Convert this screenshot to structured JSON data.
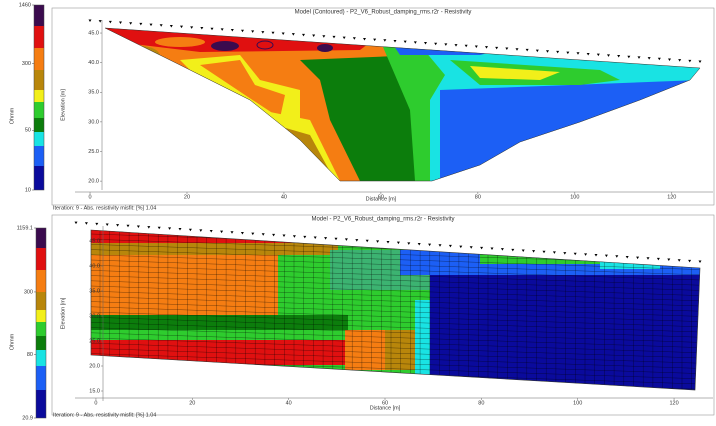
{
  "chart_data": [
    {
      "type": "section",
      "title": "Model (Contoured) - P2_V6_Robust_damping_rms.r2r - Resistivity",
      "x_label": "Distance [m]",
      "y_label": "Elevation [m]",
      "xlim": [
        -3.1,
        128.5
      ],
      "ylim": [
        18.5,
        47.2
      ],
      "xticks": [
        0,
        20,
        40,
        60,
        80,
        100,
        120
      ],
      "yticks": [
        {
          "value": 45,
          "label": "45.0"
        },
        {
          "value": 40,
          "label": "40.0"
        },
        {
          "value": 35,
          "label": "35.0"
        },
        {
          "value": 30,
          "label": "30.0"
        },
        {
          "value": 25,
          "label": "25.0"
        },
        {
          "value": 20,
          "label": "20.0"
        }
      ],
      "colorbar_label": "Ohmm",
      "clim": [
        10,
        1460
      ],
      "log_color_scale": true,
      "cticks": [
        1460,
        300,
        50,
        10
      ],
      "note": "Iteration: 9 - Abs. resistivity misfit: [%] 1.04"
    },
    {
      "type": "section",
      "title": "Model - P2_V6_Robust_damping_rms.r2r - Resistivity",
      "x_label": "Distance [m]",
      "y_label": "Elevation [m]",
      "xlim": [
        -3,
        128.5
      ],
      "ylim": [
        13,
        48
      ],
      "xticks": [
        0,
        20,
        40,
        60,
        80,
        100,
        120
      ],
      "yticks": [
        {
          "value": 45,
          "label": "45.0"
        },
        {
          "value": 40,
          "label": "40.0"
        },
        {
          "value": 35,
          "label": "35.0"
        },
        {
          "value": 30,
          "label": "30.0"
        },
        {
          "value": 25,
          "label": "25.0"
        },
        {
          "value": 20,
          "label": "20.0"
        },
        {
          "value": 15,
          "label": "15.0"
        }
      ],
      "colorbar_label": "Ohmm",
      "clim": [
        20.9,
        1159.1
      ],
      "log_color_scale": true,
      "cticks": [
        1159.1,
        300,
        80,
        20.9
      ],
      "note": "Iteration: 9 - Abs. resistivity misfit: [%] 1.04"
    }
  ]
}
